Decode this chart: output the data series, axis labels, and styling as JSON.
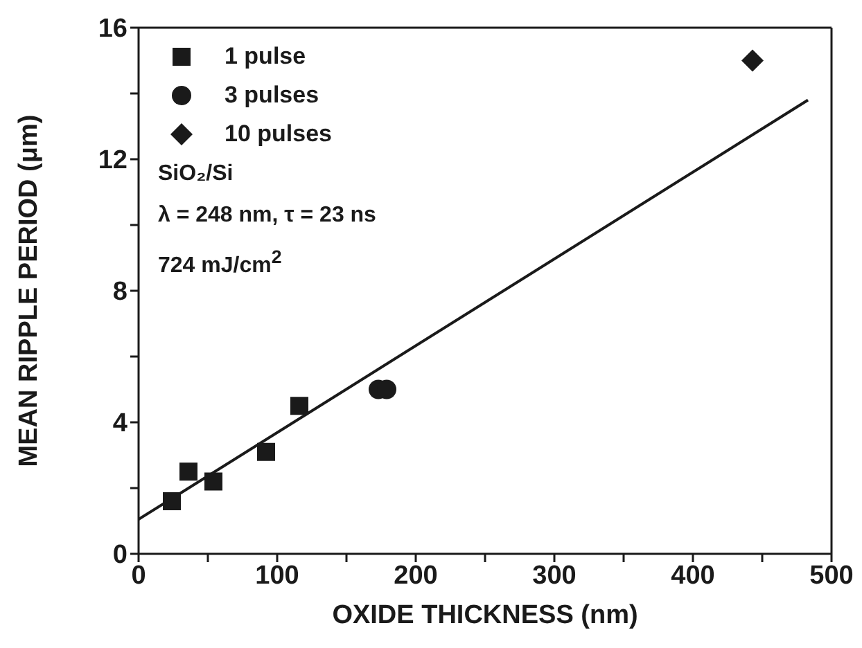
{
  "chart_data": {
    "type": "scatter",
    "xlabel": "OXIDE THICKNESS (nm)",
    "ylabel": "MEAN RIPPLE PERIOD (μm)",
    "xlim": [
      0,
      500
    ],
    "xticks": [
      0,
      {
        "value": 50,
        "label": null
      },
      100,
      {
        "value": 150,
        "label": null
      },
      200,
      {
        "value": 250,
        "label": null
      },
      300,
      {
        "value": 350,
        "label": null
      },
      400,
      {
        "value": 450,
        "label": null
      },
      500
    ],
    "ylim": [
      0,
      16
    ],
    "yticks": [
      0,
      {
        "value": 2,
        "label": null
      },
      4,
      {
        "value": 6,
        "label": null
      },
      8,
      {
        "value": 10,
        "label": null
      },
      12,
      {
        "value": 14,
        "label": null
      },
      16
    ],
    "legend": "top left",
    "series": [
      {
        "name": "1 pulse",
        "color": "#1a1a1a",
        "marker": "square",
        "x": [
          24,
          36,
          54,
          92,
          116
        ],
        "values": [
          1.6,
          2.5,
          2.2,
          3.1,
          4.5
        ]
      },
      {
        "name": "3 pulses",
        "color": "#1a1a1a",
        "marker": "circle",
        "x": [
          173,
          179
        ],
        "values": [
          5.0,
          5.0
        ]
      },
      {
        "name": "10 pulses",
        "color": "#1a1a1a",
        "marker": "diamond",
        "x": [
          443
        ],
        "values": [
          15.0
        ]
      },
      {
        "type": "line",
        "color": "#1a1a1a",
        "marker": "none",
        "x": [
          0,
          483
        ],
        "values": [
          1.05,
          13.8
        ]
      }
    ],
    "annotations": [
      "SiO₂/Si",
      "λ = 248 nm, τ = 23 ns",
      "724 mJ/cm$^{2}$"
    ]
  }
}
